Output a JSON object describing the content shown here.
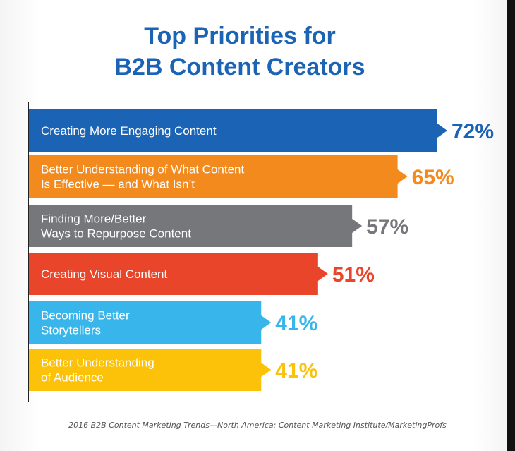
{
  "title_line1": "Top Priorities for",
  "title_line2": "B2B Content Creators",
  "footnote": "2016 B2B Content Marketing Trends—North America: Content Marketing Institute/MarketingProfs",
  "chart_data": {
    "type": "bar",
    "orientation": "horizontal",
    "xlim": [
      0,
      72
    ],
    "categories": [
      [
        "Creating More Engaging Content"
      ],
      [
        "Better Understanding of What Content",
        "Is Effective — and What Isn’t"
      ],
      [
        "Finding More/Better",
        "Ways to Repurpose Content"
      ],
      [
        "Creating Visual Content"
      ],
      [
        "Becoming Better",
        "Storytellers"
      ],
      [
        "Better Understanding",
        "of Audience"
      ]
    ],
    "values": [
      72,
      65,
      57,
      51,
      41,
      41
    ],
    "value_labels": [
      "72%",
      "65%",
      "57%",
      "51%",
      "41%",
      "41%"
    ],
    "colors": [
      "#1b63b5",
      "#f28a1e",
      "#76777b",
      "#e8452a",
      "#38b6ec",
      "#fcc20a"
    ],
    "value_label_colors": [
      "#1b63b5",
      "#f28a1e",
      "#76777b",
      "#e8452a",
      "#38b6ec",
      "#fcc20a"
    ]
  }
}
